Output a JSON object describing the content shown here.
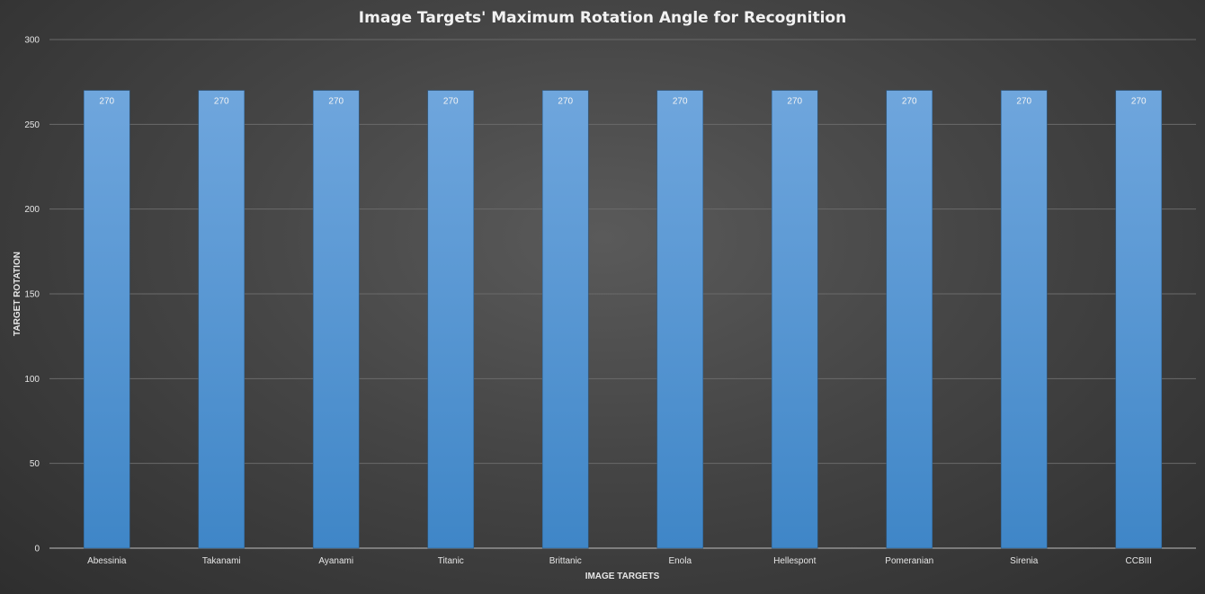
{
  "chart_data": {
    "type": "bar",
    "title": "Image Targets' Maximum Rotation Angle for Recognition",
    "xlabel": "IMAGE TARGETS",
    "ylabel": "TARGET ROTATION",
    "categories": [
      "Abessinia",
      "Takanami",
      "Ayanami",
      "Titanic",
      "Brittanic",
      "Enola",
      "Hellespont",
      "Pomeranian",
      "Sirenia",
      "CCBIII"
    ],
    "values": [
      270,
      270,
      270,
      270,
      270,
      270,
      270,
      270,
      270,
      270
    ],
    "ylim": [
      0,
      300
    ],
    "yticks": [
      0,
      50,
      100,
      150,
      200,
      250,
      300
    ],
    "grid": true,
    "data_labels": true,
    "legend": "none",
    "bar_color": "#5b9bd5"
  }
}
